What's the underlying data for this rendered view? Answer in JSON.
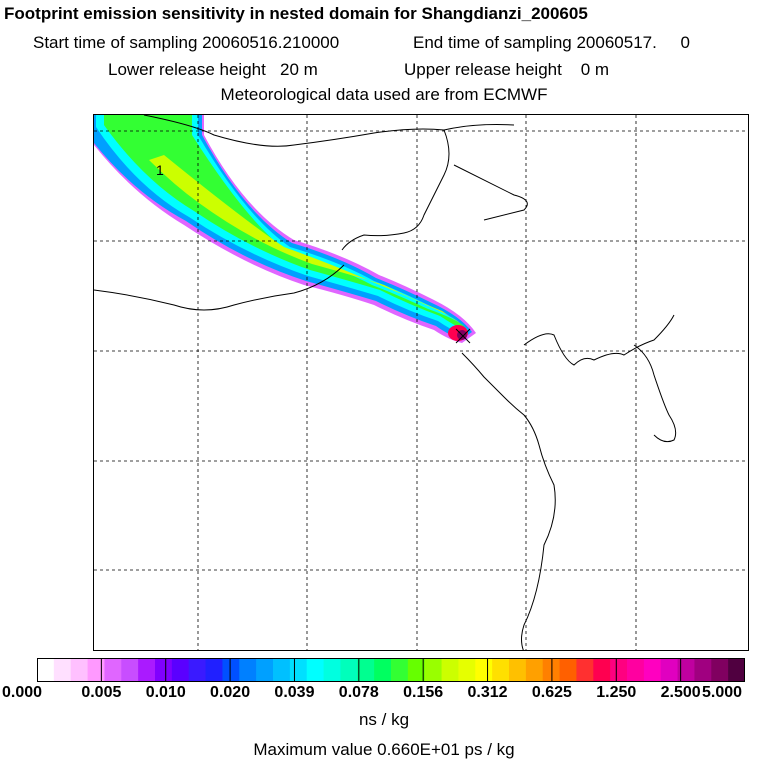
{
  "header": {
    "title": "Footprint emission sensitivity in nested domain for Shangdianzi_200605",
    "start_sampling": "Start time of sampling 20060516.210000",
    "end_sampling": "End time of sampling 20060517.     0",
    "lower_release": "Lower release height   20 m",
    "upper_release": "Upper release height    0 m",
    "met_data": "Meteorological data used are from ECMWF"
  },
  "map": {
    "station_marker": "station-marker",
    "plume_label": "1"
  },
  "legend": {
    "colors": [
      "#ffffff",
      "#ffe0ff",
      "#ffc0ff",
      "#ff99ff",
      "#e066ff",
      "#c84dff",
      "#aa1aff",
      "#8000ff",
      "#5a00ff",
      "#3a1aff",
      "#2020ff",
      "#0050ff",
      "#0080ff",
      "#00a0ff",
      "#00c0ff",
      "#00e0ff",
      "#00ffff",
      "#00ffe0",
      "#00ffbb",
      "#00ff90",
      "#00ff60",
      "#33ff33",
      "#66ff00",
      "#99ff00",
      "#ccff00",
      "#e6ff00",
      "#ffff00",
      "#ffe000",
      "#ffc000",
      "#ffa000",
      "#ff8000",
      "#ff6000",
      "#ff3030",
      "#ff0050",
      "#ff0080",
      "#ff00a0",
      "#ff00c0",
      "#e000c0",
      "#c000a0",
      "#a00080",
      "#800060",
      "#500040"
    ],
    "tick_labels": [
      "0.000",
      "0.005",
      "0.010",
      "0.020",
      "0.039",
      "0.078",
      "0.156",
      "0.312",
      "0.625",
      "1.250",
      "2.500",
      "5.000"
    ],
    "unit": "ns / kg",
    "max_value": "Maximum value  0.660E+01 ps / kg"
  }
}
